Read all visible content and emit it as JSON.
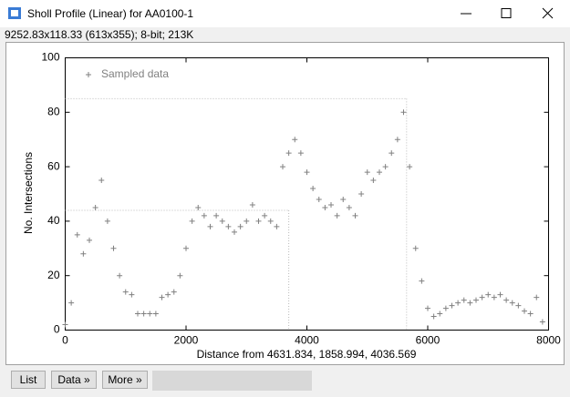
{
  "window": {
    "title": "Sholl Profile (Linear) for AA0100-1",
    "info": "9252.83x118.33  (613x355); 8-bit; 213K"
  },
  "buttons": [
    "List",
    "Data »",
    "More »"
  ],
  "chart_data": {
    "type": "scatter",
    "xlabel": "Distance from 4631.834, 1858.994, 4036.569",
    "ylabel": "No. Intersections",
    "xlim": [
      0,
      8000
    ],
    "ylim": [
      0,
      100
    ],
    "xticks": [
      0,
      2000,
      4000,
      6000,
      8000
    ],
    "yticks": [
      0,
      20,
      40,
      60,
      80,
      100
    ],
    "legend": "upper left",
    "guides": [
      {
        "x": 5650,
        "y": 85
      },
      {
        "x": 3700,
        "y": 44
      }
    ],
    "x": [
      0,
      100,
      200,
      300,
      400,
      500,
      600,
      700,
      800,
      900,
      1000,
      1100,
      1200,
      1300,
      1400,
      1500,
      1600,
      1700,
      1800,
      1900,
      2000,
      2100,
      2200,
      2300,
      2400,
      2500,
      2600,
      2700,
      2800,
      2900,
      3000,
      3100,
      3200,
      3300,
      3400,
      3500,
      3600,
      3700,
      3800,
      3900,
      4000,
      4100,
      4200,
      4300,
      4400,
      4500,
      4600,
      4700,
      4800,
      4900,
      5000,
      5100,
      5200,
      5300,
      5400,
      5500,
      5600,
      5700,
      5800,
      5900,
      6000,
      6100,
      6200,
      6300,
      6400,
      6500,
      6600,
      6700,
      6800,
      6900,
      7000,
      7100,
      7200,
      7300,
      7400,
      7500,
      7600,
      7700,
      7800,
      7900
    ],
    "series": [
      {
        "name": "Sampled data",
        "color": "#808080",
        "values": [
          2,
          10,
          35,
          28,
          33,
          45,
          55,
          40,
          30,
          20,
          14,
          13,
          6,
          6,
          6,
          6,
          12,
          13,
          14,
          20,
          30,
          40,
          45,
          42,
          38,
          42,
          40,
          38,
          36,
          38,
          40,
          46,
          40,
          42,
          40,
          38,
          60,
          65,
          70,
          65,
          58,
          52,
          48,
          45,
          46,
          42,
          48,
          45,
          42,
          50,
          58,
          55,
          58,
          60,
          65,
          70,
          80,
          60,
          30,
          18,
          8,
          5,
          6,
          8,
          9,
          10,
          11,
          10,
          11,
          12,
          13,
          12,
          13,
          11,
          10,
          9,
          7,
          6,
          12,
          3
        ]
      }
    ]
  }
}
